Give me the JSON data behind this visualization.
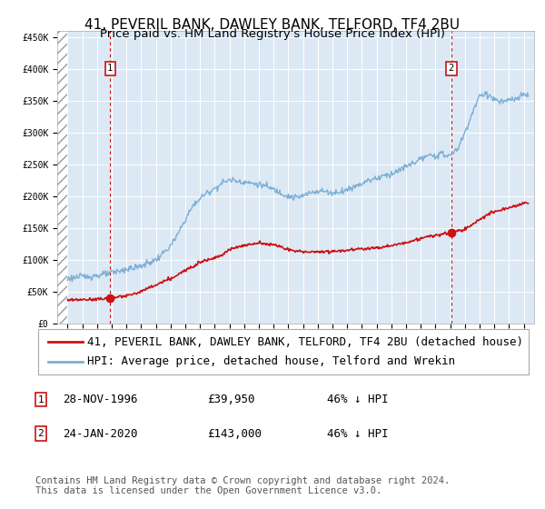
{
  "title": "41, PEVERIL BANK, DAWLEY BANK, TELFORD, TF4 2BU",
  "subtitle": "Price paid vs. HM Land Registry's House Price Index (HPI)",
  "ylim": [
    0,
    460000
  ],
  "yticks": [
    0,
    50000,
    100000,
    150000,
    200000,
    250000,
    300000,
    350000,
    400000,
    450000
  ],
  "ytick_labels": [
    "£0",
    "£50K",
    "£100K",
    "£150K",
    "£200K",
    "£250K",
    "£300K",
    "£350K",
    "£400K",
    "£450K"
  ],
  "hpi_color": "#7bafd4",
  "price_color": "#cc1111",
  "marker_color": "#cc1111",
  "dashed_color": "#cc1111",
  "annotation_box_color": "#cc1111",
  "bg_color": "#dce9f5",
  "grid_color": "#ffffff",
  "legend_label_price": "41, PEVERIL BANK, DAWLEY BANK, TELFORD, TF4 2BU (detached house)",
  "legend_label_hpi": "HPI: Average price, detached house, Telford and Wrekin",
  "purchase1_date": "28-NOV-1996",
  "purchase1_price": "£39,950",
  "purchase1_hpi": "46% ↓ HPI",
  "purchase1_year": 1996.9,
  "purchase1_value": 39950,
  "purchase2_date": "24-JAN-2020",
  "purchase2_price": "£143,000",
  "purchase2_hpi": "46% ↓ HPI",
  "purchase2_year": 2020.07,
  "purchase2_value": 143000,
  "footer": "Contains HM Land Registry data © Crown copyright and database right 2024.\nThis data is licensed under the Open Government Licence v3.0.",
  "title_fontsize": 11,
  "tick_fontsize": 7,
  "legend_fontsize": 9,
  "annotation_fontsize": 9,
  "footer_fontsize": 7.5
}
